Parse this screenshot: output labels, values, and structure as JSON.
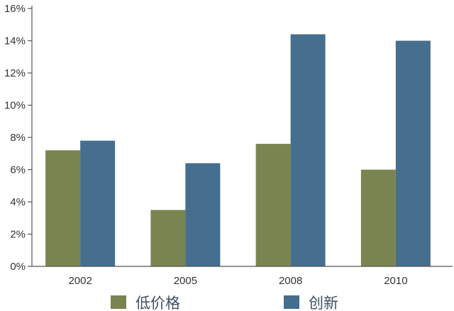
{
  "chart_data": {
    "type": "bar",
    "categories": [
      "2002",
      "2005",
      "2008",
      "2010"
    ],
    "series": [
      {
        "name": "低价格",
        "values": [
          7.2,
          3.5,
          7.6,
          6.0
        ],
        "color": "#7a8450"
      },
      {
        "name": "创新",
        "values": [
          7.8,
          6.4,
          14.4,
          14.0
        ],
        "color": "#456e8f"
      }
    ],
    "ylim": [
      0,
      16
    ],
    "yticks": [
      0,
      2,
      4,
      6,
      8,
      10,
      12,
      14,
      16
    ],
    "ytick_labels": [
      "0%",
      "2%",
      "4%",
      "6%",
      "8%",
      "10%",
      "12%",
      "14%",
      "16%"
    ],
    "title": "",
    "xlabel": "",
    "ylabel": "",
    "grid": false,
    "legend_position": "bottom"
  }
}
